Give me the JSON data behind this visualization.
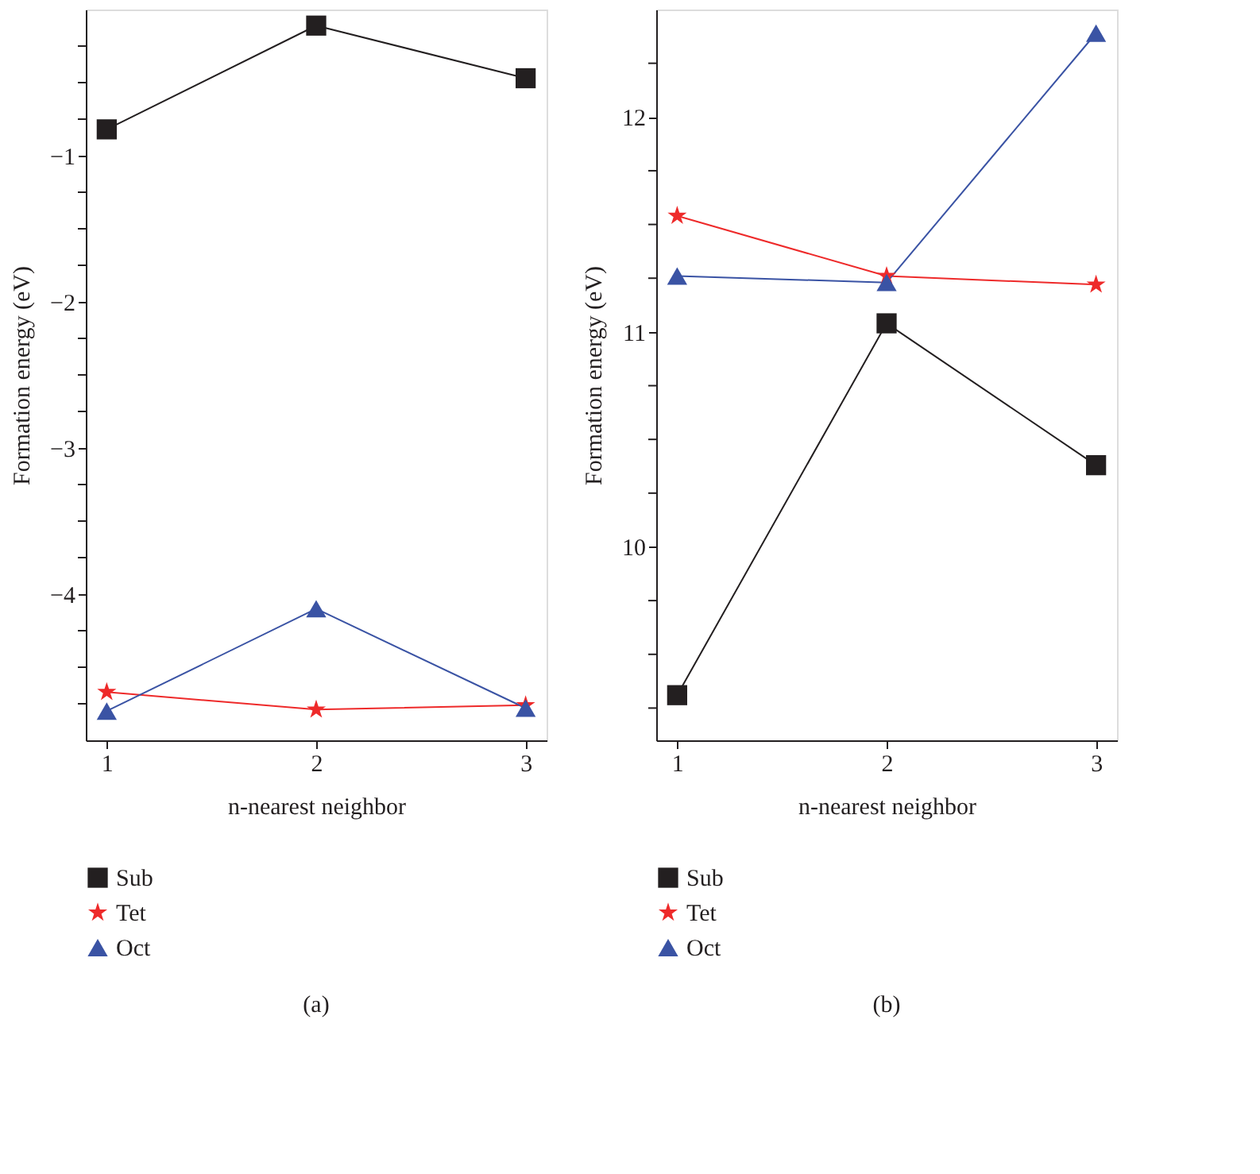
{
  "chart_data": [
    {
      "type": "line",
      "title": "(a)",
      "xlabel": "n-nearest neighbor",
      "ylabel": "Formation energy (eV)",
      "x": [
        1,
        2,
        3
      ],
      "xlim": [
        0.9,
        3.1
      ],
      "xticks": [
        1,
        2,
        3
      ],
      "ylim": [
        -5,
        0
      ],
      "yticks": [
        {
          "value": -4.75,
          "label": null
        },
        {
          "value": -4.5,
          "label": null
        },
        {
          "value": -4.25,
          "label": null
        },
        -4,
        {
          "value": -3.75,
          "label": null
        },
        {
          "value": -3.5,
          "label": null
        },
        {
          "value": -3.25,
          "label": null
        },
        -3,
        {
          "value": -2.75,
          "label": null
        },
        {
          "value": -2.5,
          "label": null
        },
        {
          "value": -2.25,
          "label": null
        },
        -2,
        {
          "value": -1.75,
          "label": null
        },
        {
          "value": -1.5,
          "label": null
        },
        {
          "value": -1.25,
          "label": null
        },
        -1,
        {
          "value": -0.75,
          "label": null
        },
        {
          "value": -0.5,
          "label": null
        },
        {
          "value": -0.25,
          "label": null
        }
      ],
      "grid": false,
      "legend": "bottom",
      "line_style": "solid",
      "series": [
        {
          "name": "Sub",
          "color": "#231f20",
          "marker": "square",
          "values": [
            -0.82,
            -0.11,
            -0.47
          ]
        },
        {
          "name": "Tet",
          "color": "#ee2a2a",
          "marker": "star",
          "values": [
            -4.67,
            -4.79,
            -4.76
          ]
        },
        {
          "name": "Oct",
          "color": "#3a53a4",
          "marker": "triangle",
          "values": [
            -4.8,
            -4.1,
            -4.78
          ]
        }
      ]
    },
    {
      "type": "line",
      "title": "(b)",
      "xlabel": "n-nearest neighbor",
      "ylabel": "Formation energy (eV)",
      "x": [
        1,
        2,
        3
      ],
      "xlim": [
        0.9,
        3.1
      ],
      "xticks": [
        1,
        2,
        3
      ],
      "ylim": [
        9.1,
        12.5
      ],
      "yticks": [
        {
          "value": 9.25,
          "label": null
        },
        {
          "value": 9.5,
          "label": null
        },
        {
          "value": 9.75,
          "label": null
        },
        10,
        {
          "value": 10.25,
          "label": null
        },
        {
          "value": 10.5,
          "label": null
        },
        {
          "value": 10.75,
          "label": null
        },
        11,
        {
          "value": 11.25,
          "label": null
        },
        {
          "value": 11.5,
          "label": null
        },
        {
          "value": 11.75,
          "label": null
        },
        12,
        {
          "value": 12.25,
          "label": null
        }
      ],
      "grid": false,
      "legend": "bottom",
      "line_style": "solid",
      "series": [
        {
          "name": "Sub",
          "color": "#231f20",
          "marker": "square",
          "values": [
            9.31,
            11.04,
            10.38
          ]
        },
        {
          "name": "Tet",
          "color": "#ee2a2a",
          "marker": "star",
          "values": [
            11.54,
            11.26,
            11.22
          ]
        },
        {
          "name": "Oct",
          "color": "#3a53a4",
          "marker": "triangle",
          "values": [
            11.26,
            11.23,
            12.39
          ]
        }
      ]
    }
  ]
}
